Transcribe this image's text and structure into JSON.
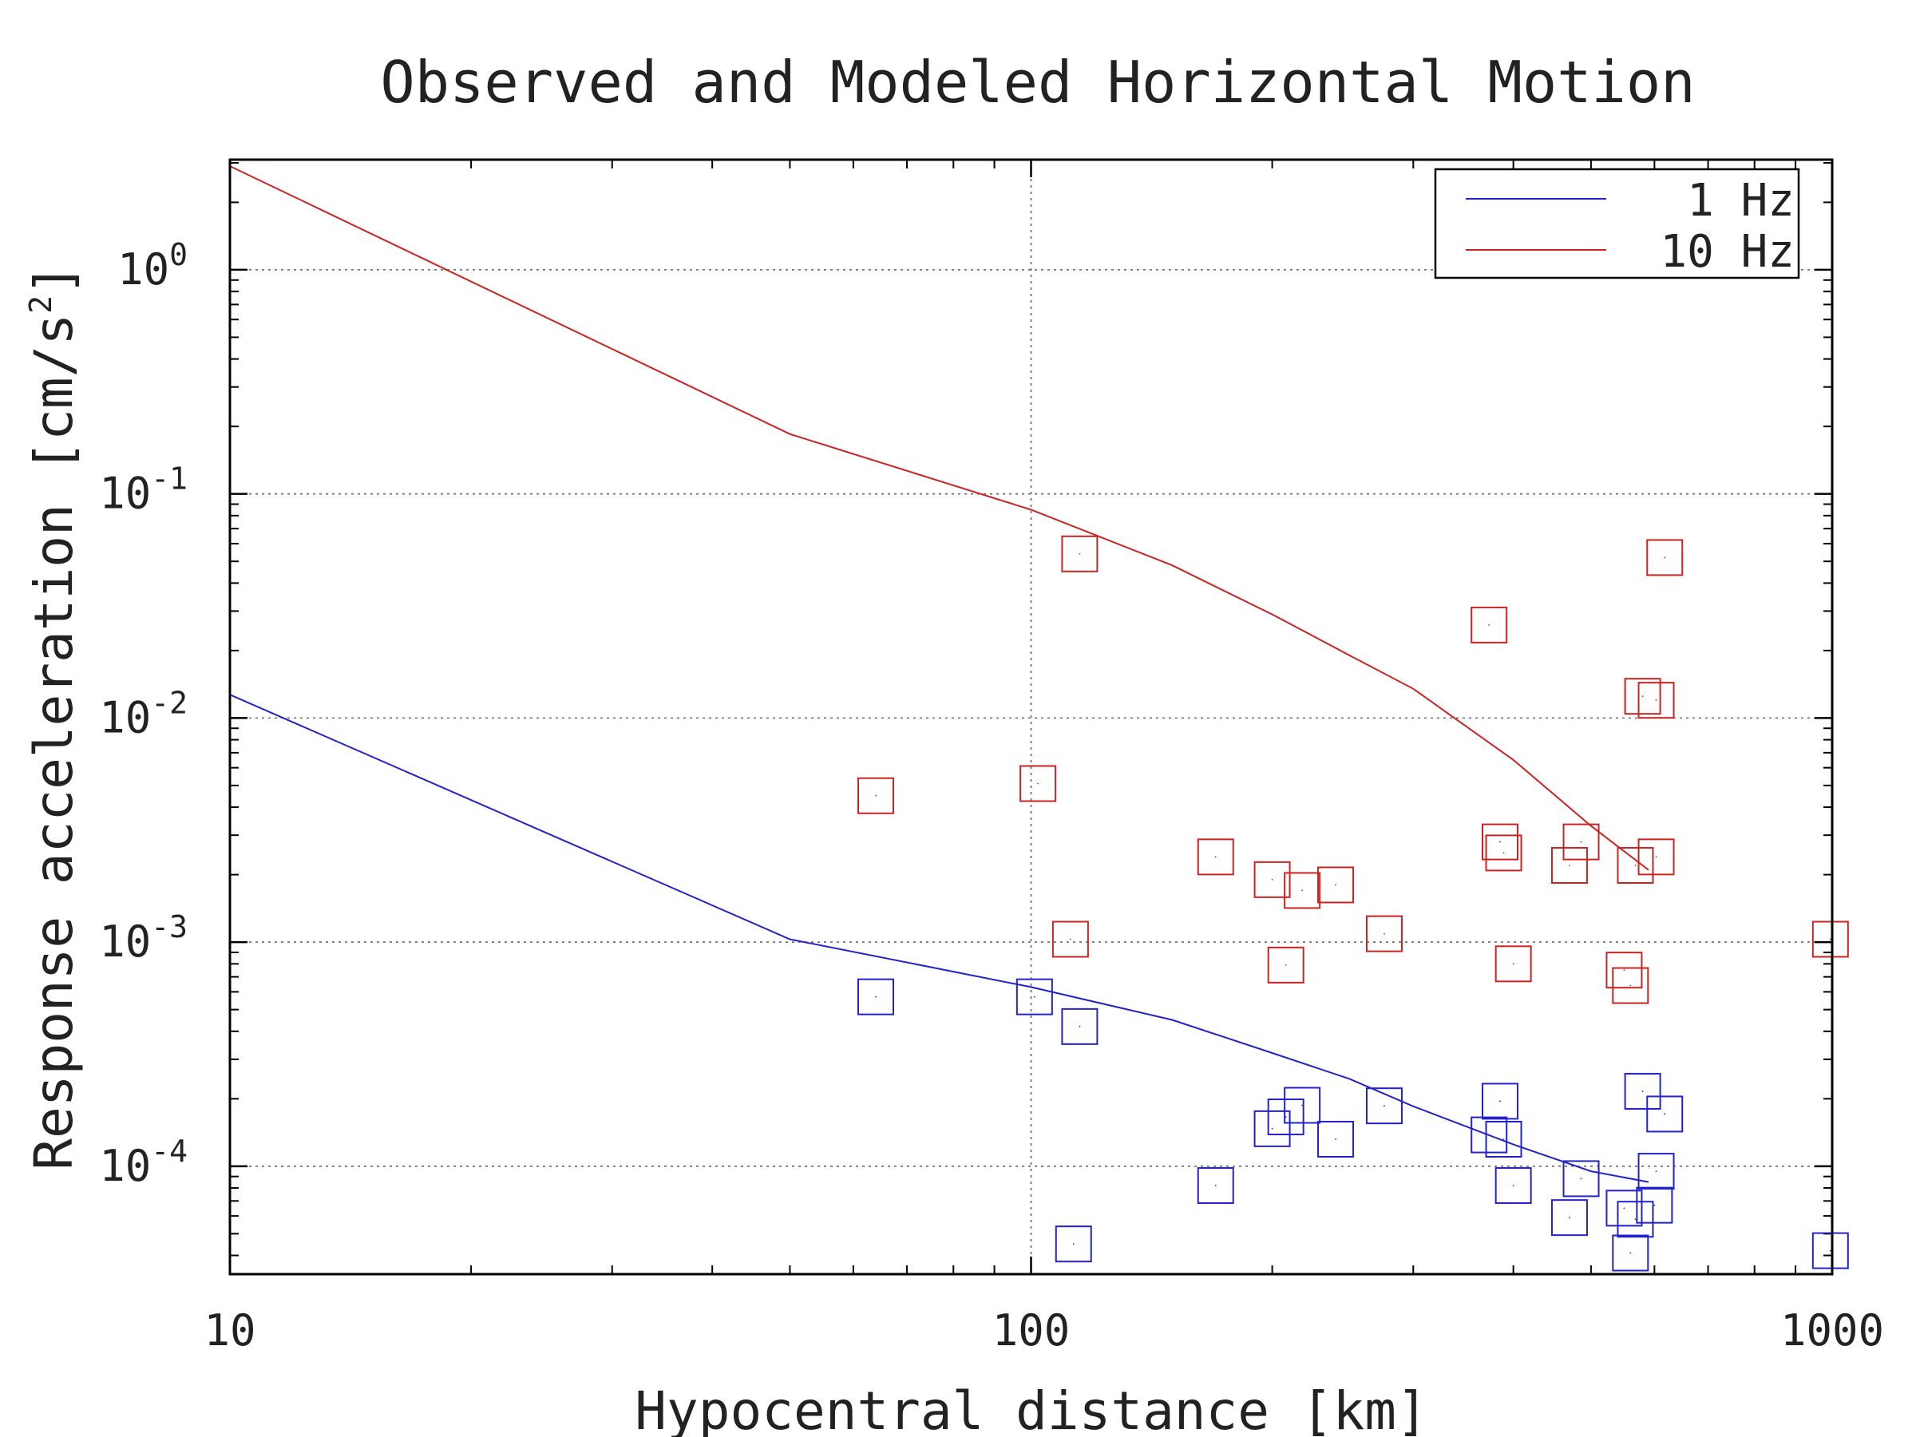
{
  "chart_data": {
    "type": "scatter",
    "title": "Observed and Modeled Horizontal Motion",
    "xlabel": "Hypocentral distance [km]",
    "ylabel": "Response acceleration [cm/s",
    "ylabel_superscript": "2",
    "ylabel_close": "]",
    "x_scale": "log",
    "y_scale": "log",
    "xlim": [
      10,
      1000
    ],
    "ylim": [
      3.3e-05,
      3.1
    ],
    "grid": true,
    "legend_position": "top-right",
    "x_ticks": [
      {
        "value": 10,
        "label": "10"
      },
      {
        "value": 100,
        "label": "100"
      },
      {
        "value": 1000,
        "label": "1000"
      }
    ],
    "y_ticks": [
      {
        "value": 1,
        "base": "10",
        "exp": "0"
      },
      {
        "value": 0.1,
        "base": "10",
        "exp": "-1"
      },
      {
        "value": 0.01,
        "base": "10",
        "exp": "-2"
      },
      {
        "value": 0.001,
        "base": "10",
        "exp": "-3"
      },
      {
        "value": 0.0001,
        "base": "10",
        "exp": "-4"
      }
    ],
    "series": [
      {
        "name": "1 Hz",
        "color": "#2222cc",
        "line": [
          [
            10,
            0.0127
          ],
          [
            50,
            0.00103
          ],
          [
            100,
            0.00063
          ],
          [
            150,
            0.00045
          ],
          [
            200,
            0.00032
          ],
          [
            250,
            0.000245
          ],
          [
            300,
            0.000185
          ],
          [
            400,
            0.000125
          ],
          [
            500,
            9.5e-05
          ],
          [
            590,
            8.5e-05
          ]
        ],
        "points": [
          [
            64,
            0.00057
          ],
          [
            101,
            0.00057
          ],
          [
            115,
            0.00042
          ],
          [
            113,
            4.5e-05
          ],
          [
            170,
            8.2e-05
          ],
          [
            200,
            0.000147
          ],
          [
            208,
            0.000166
          ],
          [
            218,
            0.000187
          ],
          [
            240,
            0.000132
          ],
          [
            276,
            0.000186
          ],
          [
            373,
            0.000138
          ],
          [
            385,
            0.000195
          ],
          [
            389,
            0.000132
          ],
          [
            400,
            8.2e-05
          ],
          [
            470,
            5.9e-05
          ],
          [
            486,
            8.8e-05
          ],
          [
            550,
            6.5e-05
          ],
          [
            560,
            4.1e-05
          ],
          [
            568,
            5.8e-05
          ],
          [
            580,
            0.000216
          ],
          [
            600,
            6.7e-05
          ],
          [
            603,
            9.5e-05
          ],
          [
            618,
            0.000171
          ],
          [
            995,
            4.2e-05
          ]
        ]
      },
      {
        "name": "10 Hz",
        "color": "#cc2222",
        "line": [
          [
            10,
            2.9
          ],
          [
            50,
            0.185
          ],
          [
            100,
            0.085
          ],
          [
            150,
            0.048
          ],
          [
            200,
            0.029
          ],
          [
            250,
            0.019
          ],
          [
            300,
            0.0135
          ],
          [
            400,
            0.0065
          ],
          [
            500,
            0.0033
          ],
          [
            590,
            0.0021
          ]
        ],
        "points": [
          [
            64,
            0.0045
          ],
          [
            102,
            0.0051
          ],
          [
            112,
            0.00103
          ],
          [
            115,
            0.054
          ],
          [
            170,
            0.0024
          ],
          [
            200,
            0.0019
          ],
          [
            208,
            0.00079
          ],
          [
            218,
            0.0017
          ],
          [
            240,
            0.0018
          ],
          [
            276,
            0.00109
          ],
          [
            373,
            0.026
          ],
          [
            385,
            0.0028
          ],
          [
            389,
            0.0025
          ],
          [
            400,
            0.0008
          ],
          [
            470,
            0.0022
          ],
          [
            486,
            0.0028
          ],
          [
            550,
            0.00075
          ],
          [
            560,
            0.00064
          ],
          [
            568,
            0.0022
          ],
          [
            580,
            0.0125
          ],
          [
            603,
            0.0024
          ],
          [
            603,
            0.012
          ],
          [
            618,
            0.052
          ],
          [
            995,
            0.00103
          ]
        ]
      }
    ]
  }
}
